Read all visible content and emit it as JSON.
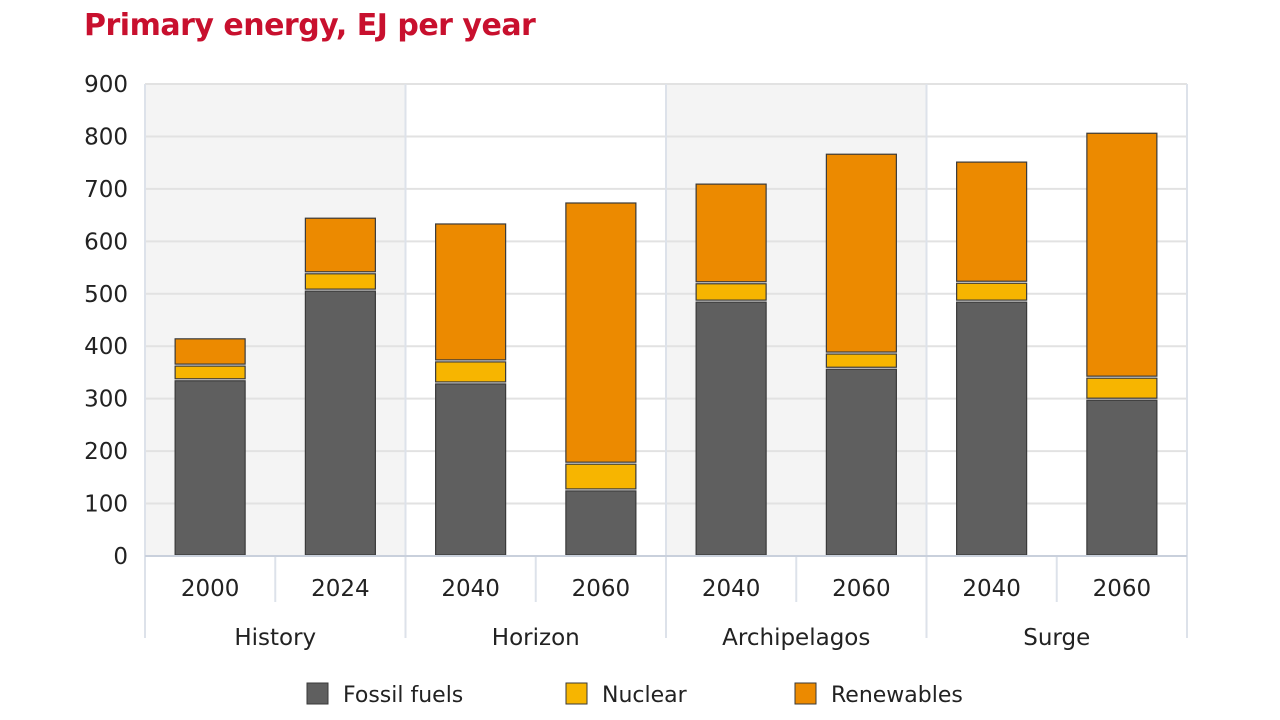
{
  "chart_data": {
    "type": "bar",
    "stacked": true,
    "title": "Primary energy, EJ per year",
    "xlabel": "",
    "ylabel": "",
    "ylim": [
      0,
      900
    ],
    "yticks": [
      0,
      100,
      200,
      300,
      400,
      500,
      600,
      700,
      800,
      900
    ],
    "grid": true,
    "legend_position": "bottom",
    "groups": [
      {
        "label": "History",
        "shaded": true,
        "categories": [
          "2000",
          "2024"
        ]
      },
      {
        "label": "Horizon",
        "shaded": false,
        "categories": [
          "2040",
          "2060"
        ]
      },
      {
        "label": "Archipelagos",
        "shaded": true,
        "categories": [
          "2040",
          "2060"
        ]
      },
      {
        "label": "Surge",
        "shaded": false,
        "categories": [
          "2040",
          "2060"
        ]
      }
    ],
    "series": [
      {
        "name": "Fossil fuels",
        "color": "#5f5f5f",
        "values": [
          336,
          507,
          330,
          126,
          486,
          358,
          486,
          299
        ]
      },
      {
        "name": "Nuclear",
        "color": "#f7b500",
        "values": [
          28,
          33,
          42,
          51,
          35,
          29,
          36,
          42
        ]
      },
      {
        "name": "Renewables",
        "color": "#ec8a00",
        "values": [
          52,
          106,
          263,
          498,
          190,
          381,
          231,
          467
        ]
      }
    ]
  }
}
